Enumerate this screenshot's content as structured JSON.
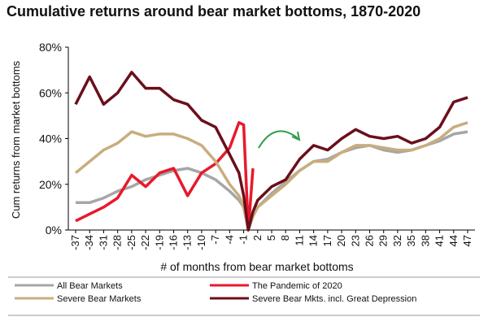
{
  "chart_data": {
    "type": "line",
    "title": "Cumulative returns around bear market bottoms, 1870-2020",
    "xlabel": "# of months from bear market  bottoms",
    "ylabel": "Cum returns from market bottoms",
    "x": [
      -37,
      -34,
      -31,
      -28,
      -25,
      -22,
      -19,
      -16,
      -13,
      -10,
      -7,
      -4,
      -2,
      -1,
      0,
      1,
      2,
      5,
      8,
      11,
      14,
      17,
      20,
      23,
      26,
      29,
      32,
      35,
      38,
      41,
      44,
      47
    ],
    "series": [
      {
        "name": "All Bear Markets",
        "color": "#a6a6a6",
        "values": [
          12,
          12,
          14,
          17,
          19,
          22,
          24,
          26,
          27,
          25,
          22,
          17,
          13,
          10,
          0,
          6,
          10,
          16,
          21,
          26,
          30,
          31,
          34,
          36,
          37,
          35,
          34,
          35,
          37,
          39,
          42,
          43
        ]
      },
      {
        "name": "The Pandemic of 2020",
        "color": "#e8192c",
        "values": [
          4,
          7,
          10,
          14,
          24,
          19,
          25,
          27,
          15,
          25,
          29,
          36,
          47,
          46,
          0,
          27,
          null,
          null,
          null,
          null,
          null,
          null,
          null,
          null,
          null,
          null,
          null,
          null,
          null,
          null,
          null,
          null
        ]
      },
      {
        "name": "Severe Bear Markets",
        "color": "#c8ad7f",
        "values": [
          25,
          30,
          35,
          38,
          43,
          41,
          42,
          42,
          40,
          37,
          30,
          20,
          15,
          10,
          0,
          6,
          10,
          15,
          20,
          26,
          30,
          30,
          34,
          37,
          37,
          36,
          35,
          35,
          37,
          40,
          45,
          47
        ]
      },
      {
        "name": "Severe Bear Mkts. incl. Great Depression",
        "color": "#6b0f1a",
        "values": [
          55,
          67,
          55,
          60,
          69,
          62,
          62,
          57,
          55,
          48,
          45,
          33,
          25,
          15,
          0,
          8,
          13,
          19,
          22,
          31,
          37,
          35,
          40,
          44,
          41,
          40,
          41,
          38,
          40,
          45,
          56,
          58
        ]
      }
    ],
    "xlim": [
      -37,
      47
    ],
    "xticks": [
      -37,
      -34,
      -31,
      -28,
      -25,
      -22,
      -19,
      -16,
      -13,
      -10,
      -7,
      -4,
      -1,
      2,
      5,
      8,
      11,
      14,
      17,
      20,
      23,
      26,
      29,
      32,
      35,
      38,
      41,
      44,
      47
    ],
    "ylim": [
      0,
      80
    ],
    "yticks": [
      {
        "value": 0,
        "label": "0%"
      },
      {
        "value": 20,
        "label": "20%"
      },
      {
        "value": 40,
        "label": "40%"
      },
      {
        "value": 60,
        "label": "60%"
      },
      {
        "value": 80,
        "label": "80%"
      }
    ]
  }
}
